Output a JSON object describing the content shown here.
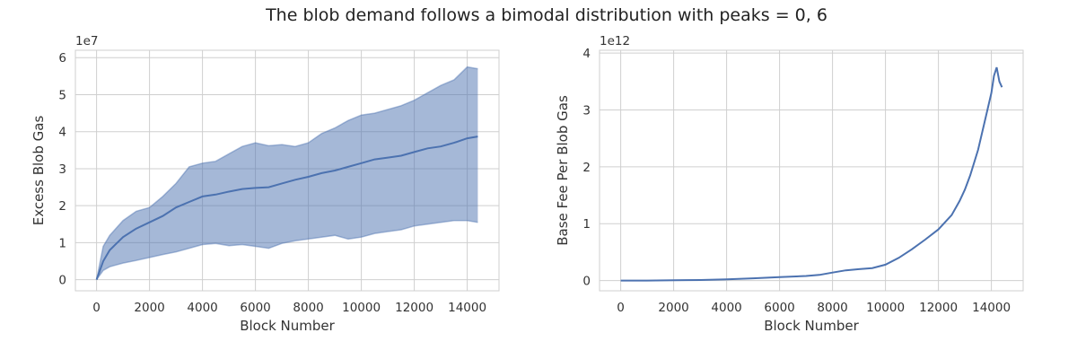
{
  "figure_title": "The blob demand follows a bimodal distribution with peaks = 0, 6",
  "colors": {
    "line": "#4c72b0",
    "band_fill": "#4c72b0",
    "grid": "#cfcfcf"
  },
  "chart_data": [
    {
      "type": "area",
      "title": "",
      "xlabel": "Block Number",
      "ylabel": "Excess Blob Gas",
      "y_offset_text": "1e7",
      "xlim": [
        -800,
        15200
      ],
      "ylim": [
        -0.3,
        6.2
      ],
      "y_unit_multiplier": 10000000,
      "xticks": [
        0,
        2000,
        4000,
        6000,
        8000,
        10000,
        12000,
        14000
      ],
      "yticks": [
        0,
        1,
        2,
        3,
        4,
        5,
        6
      ],
      "grid": true,
      "series": [
        {
          "x": [
            0,
            250,
            500,
            1000,
            1500,
            2000,
            2500,
            3000,
            3500,
            4000,
            4500,
            5000,
            5500,
            6000,
            6500,
            7000,
            7500,
            8000,
            8500,
            9000,
            9500,
            10000,
            10500,
            11000,
            11500,
            12000,
            12500,
            13000,
            13500,
            14000,
            14400
          ],
          "mean": [
            0.0,
            0.5,
            0.8,
            1.15,
            1.38,
            1.55,
            1.72,
            1.95,
            2.1,
            2.25,
            2.3,
            2.38,
            2.45,
            2.48,
            2.5,
            2.6,
            2.7,
            2.78,
            2.88,
            2.95,
            3.05,
            3.15,
            3.25,
            3.3,
            3.35,
            3.45,
            3.55,
            3.6,
            3.7,
            3.82,
            3.87
          ],
          "lower": [
            0.0,
            0.25,
            0.35,
            0.45,
            0.52,
            0.6,
            0.68,
            0.75,
            0.85,
            0.95,
            0.98,
            0.92,
            0.95,
            0.9,
            0.85,
            0.98,
            1.05,
            1.1,
            1.15,
            1.2,
            1.1,
            1.15,
            1.25,
            1.3,
            1.35,
            1.45,
            1.5,
            1.55,
            1.6,
            1.6,
            1.55
          ],
          "upper": [
            0.0,
            0.9,
            1.2,
            1.6,
            1.85,
            1.95,
            2.25,
            2.6,
            3.05,
            3.15,
            3.2,
            3.4,
            3.6,
            3.7,
            3.62,
            3.65,
            3.6,
            3.7,
            3.95,
            4.1,
            4.3,
            4.45,
            4.5,
            4.6,
            4.7,
            4.85,
            5.05,
            5.25,
            5.4,
            5.75,
            5.7
          ]
        }
      ]
    },
    {
      "type": "line",
      "title": "",
      "xlabel": "Block Number",
      "ylabel": "Base Fee Per Blob Gas",
      "y_offset_text": "1e12",
      "xlim": [
        -800,
        15200
      ],
      "ylim": [
        -0.18,
        4.05
      ],
      "y_unit_multiplier": 1000000000000,
      "xticks": [
        0,
        2000,
        4000,
        6000,
        8000,
        10000,
        12000,
        14000
      ],
      "yticks": [
        0,
        1,
        2,
        3,
        4
      ],
      "grid": true,
      "series": [
        {
          "x": [
            0,
            1000,
            2000,
            3000,
            4000,
            5000,
            6000,
            7000,
            7500,
            8000,
            8500,
            9000,
            9500,
            10000,
            10500,
            11000,
            11500,
            12000,
            12500,
            12800,
            13000,
            13200,
            13500,
            13800,
            14000,
            14100,
            14200,
            14300,
            14400
          ],
          "y": [
            0.0,
            0.0,
            0.005,
            0.01,
            0.02,
            0.04,
            0.06,
            0.08,
            0.1,
            0.14,
            0.18,
            0.2,
            0.22,
            0.28,
            0.4,
            0.55,
            0.72,
            0.9,
            1.15,
            1.4,
            1.6,
            1.85,
            2.3,
            2.9,
            3.3,
            3.6,
            3.75,
            3.5,
            3.4
          ]
        }
      ]
    }
  ]
}
